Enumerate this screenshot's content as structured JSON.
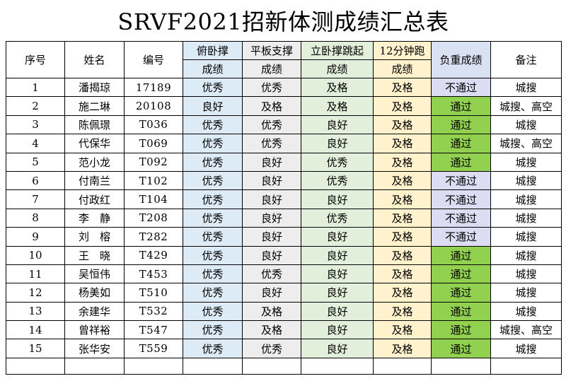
{
  "title": "SRVF2021招新体测成绩汇总表",
  "headers": {
    "seq": "序号",
    "name": "姓名",
    "id": "编号",
    "pushup": "俯卧撑",
    "plank": "平板支撑",
    "jump": "立卧撑跳起",
    "run": "12分钟跑",
    "load": "负重成绩",
    "note": "备注",
    "score": "成绩"
  },
  "rows": [
    {
      "seq": "1",
      "name": "潘揭琼",
      "id": "17189",
      "pushup": "优秀",
      "plank": "优秀",
      "jump": "及格",
      "run": "及格",
      "load": "不通过",
      "note": "城搜"
    },
    {
      "seq": "2",
      "name": "施二琳",
      "id": "20108",
      "pushup": "良好",
      "plank": "及格",
      "jump": "及格",
      "run": "及格",
      "load": "通过",
      "note": "城搜、高空"
    },
    {
      "seq": "3",
      "name": "陈佩璟",
      "id": "T036",
      "pushup": "优秀",
      "plank": "优秀",
      "jump": "良好",
      "run": "及格",
      "load": "通过",
      "note": "城搜"
    },
    {
      "seq": "4",
      "name": "代保华",
      "id": "T069",
      "pushup": "优秀",
      "plank": "优秀",
      "jump": "良好",
      "run": "及格",
      "load": "通过",
      "note": "城搜、高空"
    },
    {
      "seq": "5",
      "name": "范小龙",
      "id": "T092",
      "pushup": "优秀",
      "plank": "良好",
      "jump": "优秀",
      "run": "及格",
      "load": "通过",
      "note": "城搜"
    },
    {
      "seq": "6",
      "name": "付南兰",
      "id": "T102",
      "pushup": "优秀",
      "plank": "良好",
      "jump": "优秀",
      "run": "及格",
      "load": "不通过",
      "note": "城搜"
    },
    {
      "seq": "7",
      "name": "付政红",
      "id": "T104",
      "pushup": "优秀",
      "plank": "良好",
      "jump": "良好",
      "run": "及格",
      "load": "不通过",
      "note": "城搜"
    },
    {
      "seq": "8",
      "name": "李　静",
      "id": "T208",
      "pushup": "优秀",
      "plank": "良好",
      "jump": "优秀",
      "run": "及格",
      "load": "不通过",
      "note": "城搜"
    },
    {
      "seq": "9",
      "name": "刘　榕",
      "id": "T282",
      "pushup": "优秀",
      "plank": "良好",
      "jump": "良好",
      "run": "及格",
      "load": "不通过",
      "note": "城搜"
    },
    {
      "seq": "10",
      "name": "王　晓",
      "id": "T429",
      "pushup": "优秀",
      "plank": "良好",
      "jump": "良好",
      "run": "及格",
      "load": "通过",
      "note": "城搜"
    },
    {
      "seq": "11",
      "name": "吴恒伟",
      "id": "T453",
      "pushup": "优秀",
      "plank": "优秀",
      "jump": "良好",
      "run": "及格",
      "load": "通过",
      "note": "城搜"
    },
    {
      "seq": "12",
      "name": "杨美如",
      "id": "T510",
      "pushup": "优秀",
      "plank": "良好",
      "jump": "良好",
      "run": "及格",
      "load": "通过",
      "note": "城搜"
    },
    {
      "seq": "13",
      "name": "余建华",
      "id": "T532",
      "pushup": "优秀",
      "plank": "及格",
      "jump": "良好",
      "run": "及格",
      "load": "通过",
      "note": "城搜"
    },
    {
      "seq": "14",
      "name": "曾祥裕",
      "id": "T547",
      "pushup": "优秀",
      "plank": "及格",
      "jump": "良好",
      "run": "及格",
      "load": "通过",
      "note": "城搜、高空"
    },
    {
      "seq": "15",
      "name": "张华安",
      "id": "T559",
      "pushup": "优秀",
      "plank": "优秀",
      "jump": "良好",
      "run": "及格",
      "load": "通过",
      "note": "城搜"
    }
  ],
  "colors": {
    "pushup": "#ddebf7",
    "plank": "#ededed",
    "jump": "#e2efda",
    "run": "#fff2cc",
    "load_header": "#d9e1f2",
    "pass": "#92d050",
    "fail": "#dcdcf2"
  }
}
